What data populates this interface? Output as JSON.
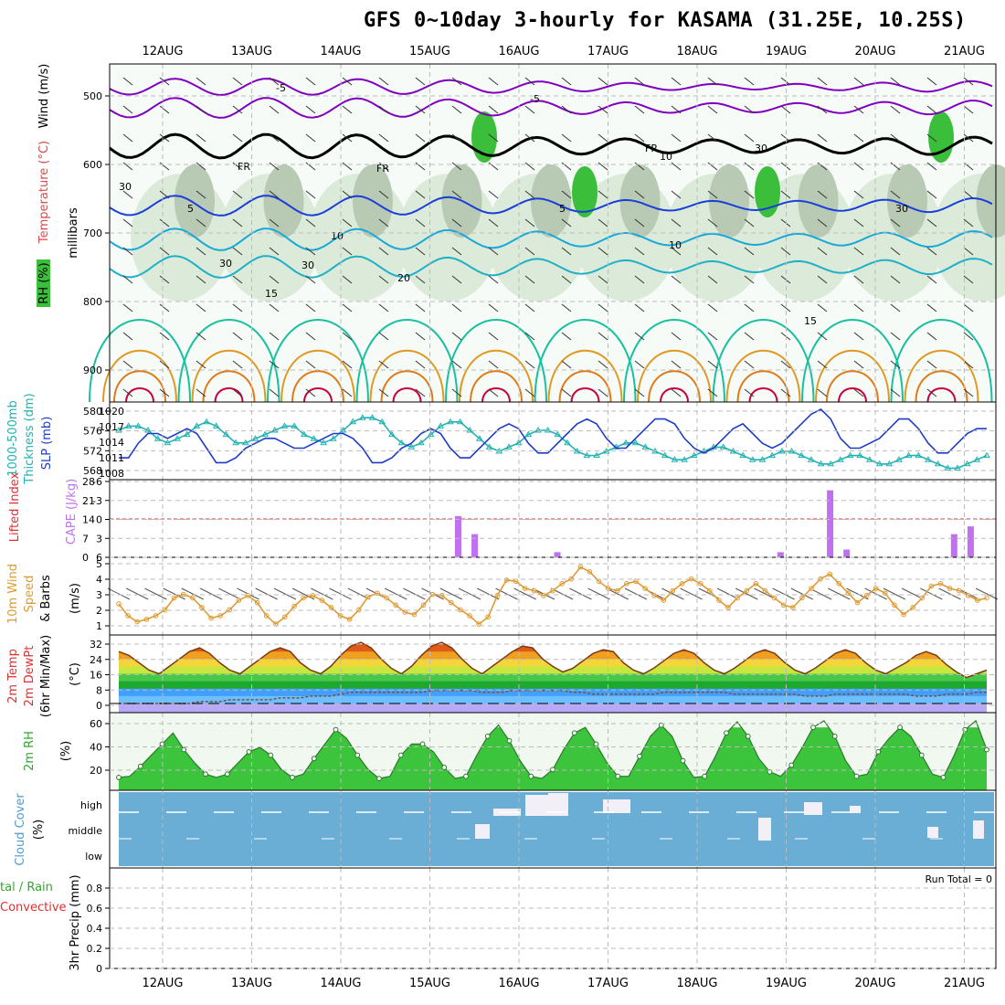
{
  "title": "GFS 0~10day 3-hourly for KASAMA (31.25E, 10.25S)",
  "dates": [
    "12AUG",
    "13AUG",
    "14AUG",
    "15AUG",
    "16AUG",
    "17AUG",
    "18AUG",
    "19AUG",
    "20AUG",
    "21AUG"
  ],
  "run_total": "Run Total = 0",
  "colors": {
    "rh_green": "#3bbf3b",
    "temp_purple": "#8000c0",
    "temp_blue": "#1a3fd8",
    "temp_cyan": "#1aa8d8",
    "temp_teal": "#18c0a0",
    "temp_orange": "#e09820",
    "slp_blue": "#1e3cc8",
    "thick_cyan": "#22b2b2",
    "cape_violet": "#c070f0",
    "li_red": "#e03030",
    "wind_orange": "#e09a30",
    "cloud_blue": "#6aaed6"
  },
  "panels": {
    "upper": {
      "labels": [
        "Wind (m/s)",
        "Temperature (°C)",
        "RH (%)"
      ],
      "ylabel": "millibars",
      "yticks": [
        "500",
        "600",
        "700",
        "800",
        "900"
      ],
      "contours": [
        "-5",
        "-5",
        "5",
        "5",
        "10",
        "10",
        "15",
        "15",
        "20",
        "FR",
        "FR",
        "FR",
        "30",
        "30",
        "30",
        "30",
        "30",
        "10"
      ]
    },
    "slp": {
      "labels": [
        "1000-500mb",
        "Thickness (dm)",
        "SLP (mb)"
      ],
      "yticks_left": [
        "580",
        "576",
        "572",
        "568"
      ],
      "yticks_right": [
        "1020",
        "1017",
        "1014",
        "1011",
        "1008"
      ]
    },
    "cape": {
      "labels": [
        "Lifted Index",
        "CAPE (J/kg)"
      ],
      "yticks_left": [
        "-6",
        "-3",
        "0",
        "3",
        "6"
      ],
      "yticks_right": [
        "28",
        "21",
        "14",
        "7",
        "0"
      ]
    },
    "wind": {
      "labels": [
        "10m Wind",
        "Speed",
        "& Barbs",
        "(m/s)"
      ],
      "yticks": [
        "5",
        "4",
        "3",
        "2",
        "1"
      ]
    },
    "temp": {
      "labels": [
        "2m Temp",
        "2m DewPt",
        "(6hr Min/Max)",
        "(°C)"
      ],
      "yticks": [
        "32",
        "24",
        "16",
        "8",
        "0"
      ]
    },
    "rh": {
      "labels": [
        "2m RH",
        "(%)"
      ],
      "yticks": [
        "60",
        "40",
        "20"
      ]
    },
    "cloud": {
      "labels": [
        "Cloud Cover",
        "(%)"
      ],
      "yticks": [
        "high",
        "middle",
        "low"
      ]
    },
    "precip": {
      "labels": [
        "tal / Rain",
        "Convective",
        "3hr Precip (mm)"
      ],
      "yticks": [
        "0.8",
        "0.6",
        "0.4",
        "0.2",
        "0"
      ]
    }
  },
  "chart_data": [
    {
      "type": "line",
      "title": "",
      "series": [
        {
          "name": "SLP (mb)",
          "values": [
            1011,
            1011,
            1014,
            1016,
            1016,
            1015,
            1016,
            1017,
            1016,
            1013,
            1010,
            1010,
            1011,
            1013,
            1014,
            1015,
            1015,
            1014,
            1013,
            1013,
            1014,
            1015,
            1016,
            1016,
            1015,
            1013,
            1010,
            1010,
            1011,
            1013,
            1014,
            1016,
            1017,
            1016,
            1013,
            1011,
            1011,
            1013,
            1015,
            1017,
            1018,
            1017,
            1014,
            1012,
            1012,
            1014,
            1016,
            1018,
            1019,
            1018,
            1015,
            1013,
            1013,
            1015,
            1017,
            1019,
            1019,
            1018,
            1015,
            1013,
            1012,
            1013,
            1015,
            1017,
            1018,
            1016,
            1014,
            1013,
            1014,
            1016,
            1018,
            1020,
            1021,
            1019,
            1015,
            1013,
            1013,
            1014,
            1015,
            1017,
            1019,
            1019,
            1017,
            1014,
            1012,
            1012,
            1014,
            1016,
            1017,
            1017
          ]
        },
        {
          "name": "Thickness (dm)",
          "values": [
            576,
            577,
            577,
            576,
            574,
            573,
            574,
            575,
            577,
            578,
            577,
            575,
            573,
            573,
            574,
            575,
            576,
            577,
            577,
            575,
            574,
            573,
            574,
            576,
            578,
            579,
            579,
            578,
            575,
            573,
            572,
            573,
            575,
            577,
            578,
            578,
            576,
            574,
            572,
            571,
            572,
            573,
            575,
            576,
            576,
            575,
            573,
            571,
            570,
            570,
            571,
            572,
            573,
            573,
            572,
            571,
            570,
            569,
            569,
            570,
            571,
            572,
            572,
            571,
            570,
            569,
            569,
            570,
            571,
            571,
            570,
            569,
            568,
            568,
            569,
            570,
            570,
            569,
            568,
            568,
            569,
            570,
            570,
            569,
            568,
            567,
            567,
            568,
            569,
            570
          ]
        }
      ]
    },
    {
      "type": "bar",
      "title": "",
      "series": [
        {
          "name": "CAPE (J/kg)",
          "values": [
            0,
            0,
            0,
            0,
            0,
            0,
            0,
            0,
            0,
            0,
            0,
            0,
            0,
            0,
            0,
            0,
            0,
            0,
            0,
            0,
            0,
            0,
            0,
            0,
            0,
            0,
            0,
            0,
            0,
            0,
            0,
            0,
            0,
            0,
            0,
            0,
            0,
            0,
            0,
            0,
            0,
            16,
            0,
            9,
            0,
            0,
            0,
            0,
            0,
            0,
            0,
            0,
            0,
            2,
            0,
            0,
            0,
            0,
            0,
            0,
            0,
            0,
            0,
            0,
            0,
            0,
            0,
            0,
            0,
            0,
            0,
            0,
            0,
            0,
            0,
            0,
            0,
            0,
            0,
            0,
            2,
            0,
            0,
            0,
            0,
            0,
            26,
            0,
            3,
            0,
            0,
            0,
            0,
            0,
            0,
            0,
            0,
            0,
            0,
            0,
            0,
            9,
            0,
            12,
            0,
            0
          ]
        }
      ]
    },
    {
      "type": "line",
      "title": "",
      "series": [
        {
          "name": "10m Wind Speed (m/s)",
          "values": [
            2.5,
            1.5,
            1,
            1.2,
            1.5,
            2,
            3,
            3.3,
            3,
            2.2,
            1.3,
            1.5,
            2,
            2.8,
            3.2,
            2.6,
            1.5,
            0.8,
            1.4,
            2.3,
            3,
            3.2,
            2.8,
            2.2,
            1.5,
            1.2,
            2,
            3.1,
            3.4,
            3,
            2.4,
            1.8,
            1.6,
            2.4,
            3.3,
            3.2,
            2.6,
            2,
            1.5,
            0.8,
            1.4,
            3.2,
            4.5,
            4.4,
            3.8,
            3.6,
            3.2,
            3.6,
            4.2,
            4.6,
            5.6,
            5.2,
            4.4,
            3.8,
            3.6,
            4.2,
            4.4,
            3.8,
            3.2,
            2.8,
            3.6,
            4.2,
            4.6,
            4.2,
            3.6,
            2.8,
            2.2,
            3,
            3.6,
            4.2,
            3.6,
            3,
            2.4,
            2.2,
            3,
            3.8,
            4.6,
            5,
            4.2,
            3.4,
            2.6,
            3.2,
            3.8,
            3.4,
            2.4,
            1.6,
            2.2,
            3,
            4,
            4.2,
            3.8,
            3.6,
            3.2,
            2.8,
            3
          ]
        }
      ]
    },
    {
      "type": "area",
      "title": "",
      "series": [
        {
          "name": "2m Temp (°C)",
          "values": [
            28,
            26,
            22,
            18,
            16,
            20,
            24,
            28,
            30,
            27,
            22,
            18,
            16,
            20,
            24,
            28,
            30,
            28,
            22,
            18,
            16,
            20,
            26,
            31,
            33,
            30,
            24,
            19,
            16,
            20,
            26,
            31,
            33,
            30,
            24,
            19,
            16,
            20,
            24,
            28,
            31,
            30,
            24,
            20,
            17,
            19,
            23,
            27,
            29,
            28,
            22,
            18,
            16,
            19,
            23,
            27,
            29,
            27,
            22,
            18,
            16,
            19,
            23,
            27,
            29,
            27,
            22,
            18,
            16,
            19,
            23,
            27,
            29,
            27,
            22,
            18,
            16,
            19,
            22,
            26,
            28,
            26,
            21,
            17,
            14,
            16,
            18
          ]
        },
        {
          "name": "2m DewPt (°C)",
          "values": [
            0,
            0,
            0,
            0,
            0,
            0,
            0,
            0,
            1,
            1,
            1,
            2,
            2,
            2,
            2,
            2,
            3,
            3,
            3,
            4,
            4,
            4,
            5,
            6,
            6,
            6,
            6,
            6,
            6,
            6,
            6,
            7,
            7,
            7,
            7,
            7,
            6,
            6,
            6,
            7,
            7,
            7,
            7,
            7,
            7,
            6,
            6,
            5,
            5,
            5,
            5,
            5,
            5,
            5,
            6,
            6,
            6,
            6,
            6,
            6,
            6,
            5,
            5,
            5,
            5,
            5,
            5,
            5,
            4,
            4,
            4,
            5,
            5,
            5,
            5,
            5,
            5,
            5,
            5,
            4,
            4,
            4,
            5,
            5,
            5,
            6,
            6
          ]
        }
      ]
    },
    {
      "type": "area",
      "title": "",
      "series": [
        {
          "name": "2m RH (%)",
          "values": [
            15,
            16,
            25,
            35,
            45,
            55,
            40,
            28,
            18,
            15,
            18,
            28,
            38,
            42,
            35,
            22,
            15,
            18,
            32,
            45,
            58,
            50,
            35,
            22,
            14,
            16,
            35,
            45,
            45,
            38,
            24,
            14,
            16,
            35,
            52,
            62,
            48,
            30,
            16,
            14,
            22,
            40,
            55,
            60,
            45,
            28,
            16,
            16,
            34,
            52,
            62,
            52,
            30,
            15,
            16,
            34,
            55,
            65,
            52,
            32,
            20,
            16,
            26,
            42,
            60,
            66,
            52,
            30,
            16,
            18,
            38,
            50,
            60,
            52,
            35,
            18,
            15,
            35,
            58,
            66,
            40
          ]
        }
      ]
    },
    {
      "type": "table",
      "title": "",
      "series": [
        {
          "name": "Cloud Cover",
          "values": [
            "high",
            "middle",
            "low"
          ]
        }
      ]
    }
  ]
}
